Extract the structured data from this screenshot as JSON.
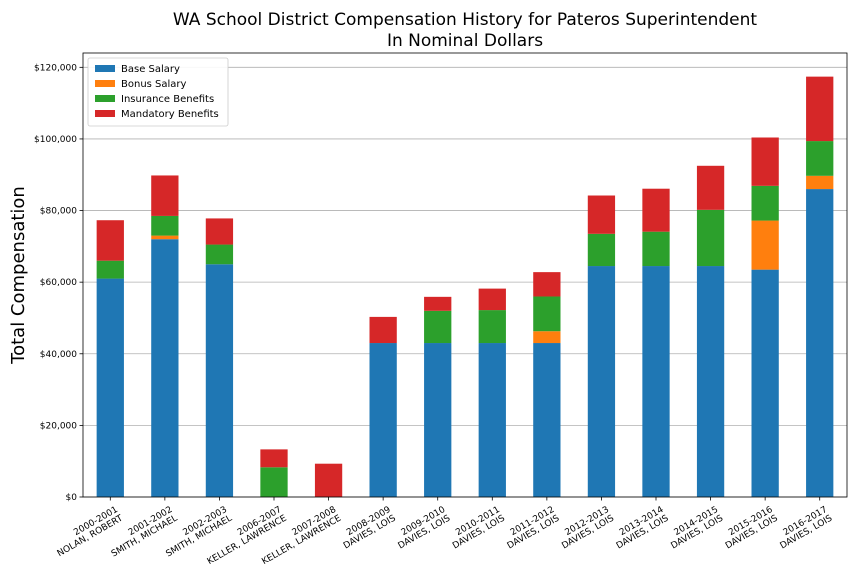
{
  "chart_data": {
    "type": "bar",
    "stacked": true,
    "title": [
      "WA School District Compensation History for Pateros Superintendent",
      "In Nominal Dollars"
    ],
    "xlabel": "",
    "ylabel": "Total Compensation",
    "ylim": [
      0,
      124000
    ],
    "yticks": [
      0,
      20000,
      40000,
      60000,
      80000,
      100000,
      120000
    ],
    "ytick_labels": [
      "$0",
      "$20,000",
      "$40,000",
      "$60,000",
      "$80,000",
      "$100,000",
      "$120,000"
    ],
    "grid": true,
    "legend_position": "top-left",
    "categories": [
      [
        "2000-2001",
        "NOLAN, ROBERT"
      ],
      [
        "2001-2002",
        "SMITH, MICHAEL"
      ],
      [
        "2002-2003",
        "SMITH, MICHAEL"
      ],
      [
        "2006-2007",
        "KELLER, LAWRENCE"
      ],
      [
        "2007-2008",
        "KELLER, LAWRENCE"
      ],
      [
        "2008-2009",
        "DAVIES, LOIS"
      ],
      [
        "2009-2010",
        "DAVIES, LOIS"
      ],
      [
        "2010-2011",
        "DAVIES, LOIS"
      ],
      [
        "2011-2012",
        "DAVIES, LOIS"
      ],
      [
        "2012-2013",
        "DAVIES, LOIS"
      ],
      [
        "2013-2014",
        "DAVIES, LOIS"
      ],
      [
        "2014-2015",
        "DAVIES, LOIS"
      ],
      [
        "2015-2016",
        "DAVIES, LOIS"
      ],
      [
        "2016-2017",
        "DAVIES, LOIS"
      ]
    ],
    "series": [
      {
        "name": "Base Salary",
        "color": "#1f77b4",
        "values": [
          61000,
          72000,
          65000,
          0,
          0,
          43000,
          43000,
          43000,
          43000,
          64500,
          64500,
          64500,
          63500,
          86000
        ]
      },
      {
        "name": "Bonus Salary",
        "color": "#ff7f0e",
        "values": [
          0,
          1000,
          0,
          0,
          0,
          0,
          0,
          0,
          3300,
          0,
          0,
          0,
          13700,
          3700
        ]
      },
      {
        "name": "Insurance Benefits",
        "color": "#2ca02c",
        "values": [
          5000,
          5500,
          5500,
          8300,
          0,
          0,
          9000,
          9200,
          9700,
          9000,
          9600,
          15700,
          9700,
          9700
        ]
      },
      {
        "name": "Mandatory Benefits",
        "color": "#d62728",
        "values": [
          11300,
          11300,
          7300,
          5000,
          9300,
          7300,
          3900,
          6000,
          6800,
          10700,
          12000,
          12300,
          13500,
          18000
        ]
      }
    ]
  }
}
